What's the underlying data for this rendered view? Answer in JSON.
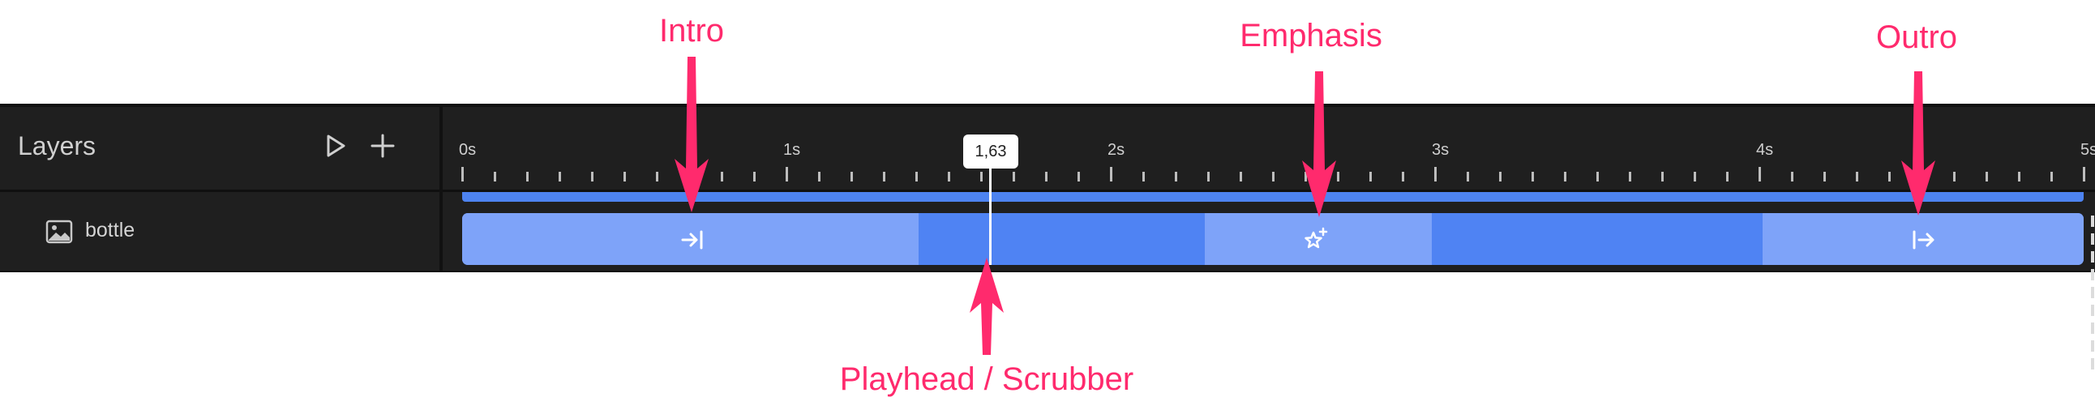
{
  "annotations": {
    "intro": "Intro",
    "emphasis": "Emphasis",
    "outro": "Outro",
    "playhead": "Playhead / Scrubber"
  },
  "layers_panel": {
    "title": "Layers",
    "play_icon": "play-icon",
    "add_icon": "plus-icon"
  },
  "layer": {
    "name": "bottle",
    "icon": "image-icon"
  },
  "ruler": {
    "labels": [
      "0s",
      "1s",
      "2s",
      "3s",
      "4s",
      "5s"
    ]
  },
  "playhead": {
    "time_label": "1,63"
  },
  "segments": {
    "intro_icon": "intro-icon",
    "emphasis_icon": "emphasis-icon",
    "outro_icon": "outro-icon"
  },
  "colors": {
    "accent": "#ff2a6d",
    "clip_light": "#7ea3f9",
    "clip_dark": "#4f83f3",
    "panel_bg": "#1f1f1f"
  }
}
